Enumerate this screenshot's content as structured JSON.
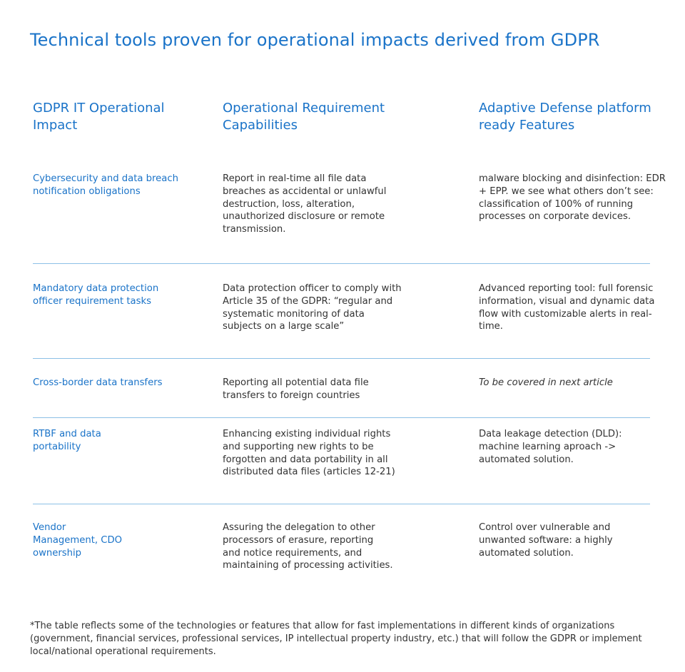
{
  "title": "Technical tools proven for operational impacts derived from GDPR",
  "headers": {
    "col1": "GDPR IT Operational Impact",
    "col2": "Operational Requirement Capabilities",
    "col3": "Adaptive Defense platform ready Features"
  },
  "rows": [
    {
      "impact": "Cybersecurity and data breach notification obligations",
      "requirement": "Report in real-time all file data breaches as accidental or unlawful destruction, loss, alteration, unauthorized disclosure or remote transmission.",
      "feature": "malware blocking and disinfection: EDR + EPP.  we see what others don’t see: classification of 100% of running processes on corporate devices."
    },
    {
      "impact": "Mandatory data protection officer requirement tasks",
      "requirement": "Data protection officer to comply with Article 35 of the GDPR: “regular and systematic monitoring of data subjects on a large scale”",
      "feature": "Advanced reporting tool: full forensic information, visual and dynamic data flow with customizable alerts in real-time."
    },
    {
      "impact": "Cross-border data transfers",
      "requirement": "Reporting all potential data file transfers to foreign countries",
      "feature": "To be covered in next article"
    },
    {
      "impact": "RTBF and data portability",
      "requirement": "Enhancing existing individual rights and supporting new rights to be forgotten and data portability in all distributed data files (articles 12-21)",
      "feature": "Data leakage detection (DLD): machine learning aproach -> automated solution."
    },
    {
      "impact": "Vendor Management, CDO ownership",
      "requirement": "Assuring the delegation to other processors of erasure, reporting and notice requirements, and maintaining of processing activities.",
      "feature": "Control over vulnerable and unwanted software: a highly automated solution."
    }
  ],
  "footnote": "*The table reflects some of the technologies or features that allow for fast implementations in different kinds of organizations (government, financial services, professional services, IP intellectual property industry, etc.) that will follow the GDPR or implement local/national operational requirements.",
  "colors": {
    "accent": "#1a73c8",
    "text": "#333333",
    "rule": "#8cc0e6"
  }
}
